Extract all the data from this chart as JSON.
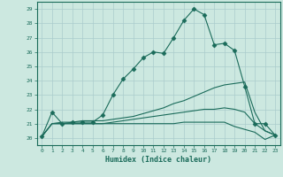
{
  "xlabel": "Humidex (Indice chaleur)",
  "background_color": "#cce8e0",
  "grid_color": "#aacccc",
  "line_color": "#1a6b5a",
  "xlim": [
    -0.5,
    23.5
  ],
  "ylim": [
    19.5,
    29.5
  ],
  "yticks": [
    20,
    21,
    22,
    23,
    24,
    25,
    26,
    27,
    28,
    29
  ],
  "xticks": [
    0,
    1,
    2,
    3,
    4,
    5,
    6,
    7,
    8,
    9,
    10,
    11,
    12,
    13,
    14,
    15,
    16,
    17,
    18,
    19,
    20,
    21,
    22,
    23
  ],
  "lines": [
    {
      "x": [
        0,
        1,
        2,
        3,
        4,
        5,
        6,
        7,
        8,
        9,
        10,
        11,
        12,
        13,
        14,
        15,
        16,
        17,
        18,
        19,
        20,
        21,
        22,
        23
      ],
      "y": [
        20.1,
        21.8,
        21.0,
        21.1,
        21.1,
        21.1,
        21.6,
        23.0,
        24.1,
        24.8,
        25.6,
        26.0,
        25.9,
        27.0,
        28.2,
        29.0,
        28.6,
        26.5,
        26.6,
        26.1,
        23.6,
        21.0,
        21.0,
        20.2
      ],
      "marker": "D",
      "markersize": 2.5
    },
    {
      "x": [
        0,
        1,
        2,
        3,
        4,
        5,
        6,
        7,
        8,
        9,
        10,
        11,
        12,
        13,
        14,
        15,
        16,
        17,
        18,
        19,
        20,
        21,
        22,
        23
      ],
      "y": [
        20.1,
        21.0,
        21.1,
        21.1,
        21.2,
        21.2,
        21.2,
        21.3,
        21.4,
        21.5,
        21.7,
        21.9,
        22.1,
        22.4,
        22.6,
        22.9,
        23.2,
        23.5,
        23.7,
        23.8,
        23.9,
        21.8,
        20.5,
        20.2
      ],
      "marker": null,
      "markersize": 0
    },
    {
      "x": [
        0,
        1,
        2,
        3,
        4,
        5,
        6,
        7,
        8,
        9,
        10,
        11,
        12,
        13,
        14,
        15,
        16,
        17,
        18,
        19,
        20,
        21,
        22,
        23
      ],
      "y": [
        20.1,
        21.0,
        21.0,
        21.0,
        21.0,
        21.0,
        21.0,
        21.1,
        21.2,
        21.3,
        21.4,
        21.5,
        21.6,
        21.7,
        21.8,
        21.9,
        22.0,
        22.0,
        22.1,
        22.0,
        21.8,
        21.0,
        20.5,
        20.2
      ],
      "marker": null,
      "markersize": 0
    },
    {
      "x": [
        0,
        1,
        2,
        3,
        4,
        5,
        6,
        7,
        8,
        9,
        10,
        11,
        12,
        13,
        14,
        15,
        16,
        17,
        18,
        19,
        20,
        21,
        22,
        23
      ],
      "y": [
        20.1,
        21.0,
        21.0,
        21.0,
        21.0,
        21.0,
        21.0,
        21.0,
        21.0,
        21.0,
        21.0,
        21.0,
        21.0,
        21.0,
        21.1,
        21.1,
        21.1,
        21.1,
        21.1,
        20.8,
        20.6,
        20.4,
        19.9,
        20.2
      ],
      "marker": null,
      "markersize": 0
    }
  ]
}
